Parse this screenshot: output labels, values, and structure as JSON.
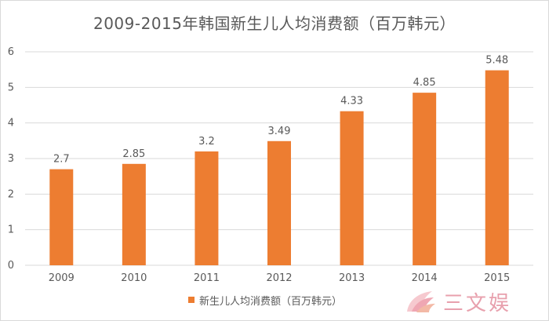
{
  "chart_data": {
    "type": "bar",
    "title": "2009-2015年韩国新生儿人均消费额（百万韩元）",
    "categories": [
      "2009",
      "2010",
      "2011",
      "2012",
      "2013",
      "2014",
      "2015"
    ],
    "series": [
      {
        "name": "新生儿人均消费额（百万韩元）",
        "values": [
          2.7,
          2.85,
          3.2,
          3.49,
          4.33,
          4.85,
          5.48
        ],
        "data_labels": [
          "2.7",
          "2.85",
          "3.2",
          "3.49",
          "4.33",
          "4.85",
          "5.48"
        ]
      }
    ],
    "y_ticks": [
      "0",
      "1",
      "2",
      "3",
      "4",
      "5",
      "6"
    ],
    "ylim": [
      0,
      6
    ],
    "grid": true,
    "legend_position": "bottom",
    "bar_color": "#ed7d31",
    "grid_color": "#d9d9d9",
    "text_color": "#595959"
  },
  "watermark": {
    "text": "三文娱",
    "icon": "pink-fan-logo-icon",
    "color": "#e8a0ad"
  }
}
